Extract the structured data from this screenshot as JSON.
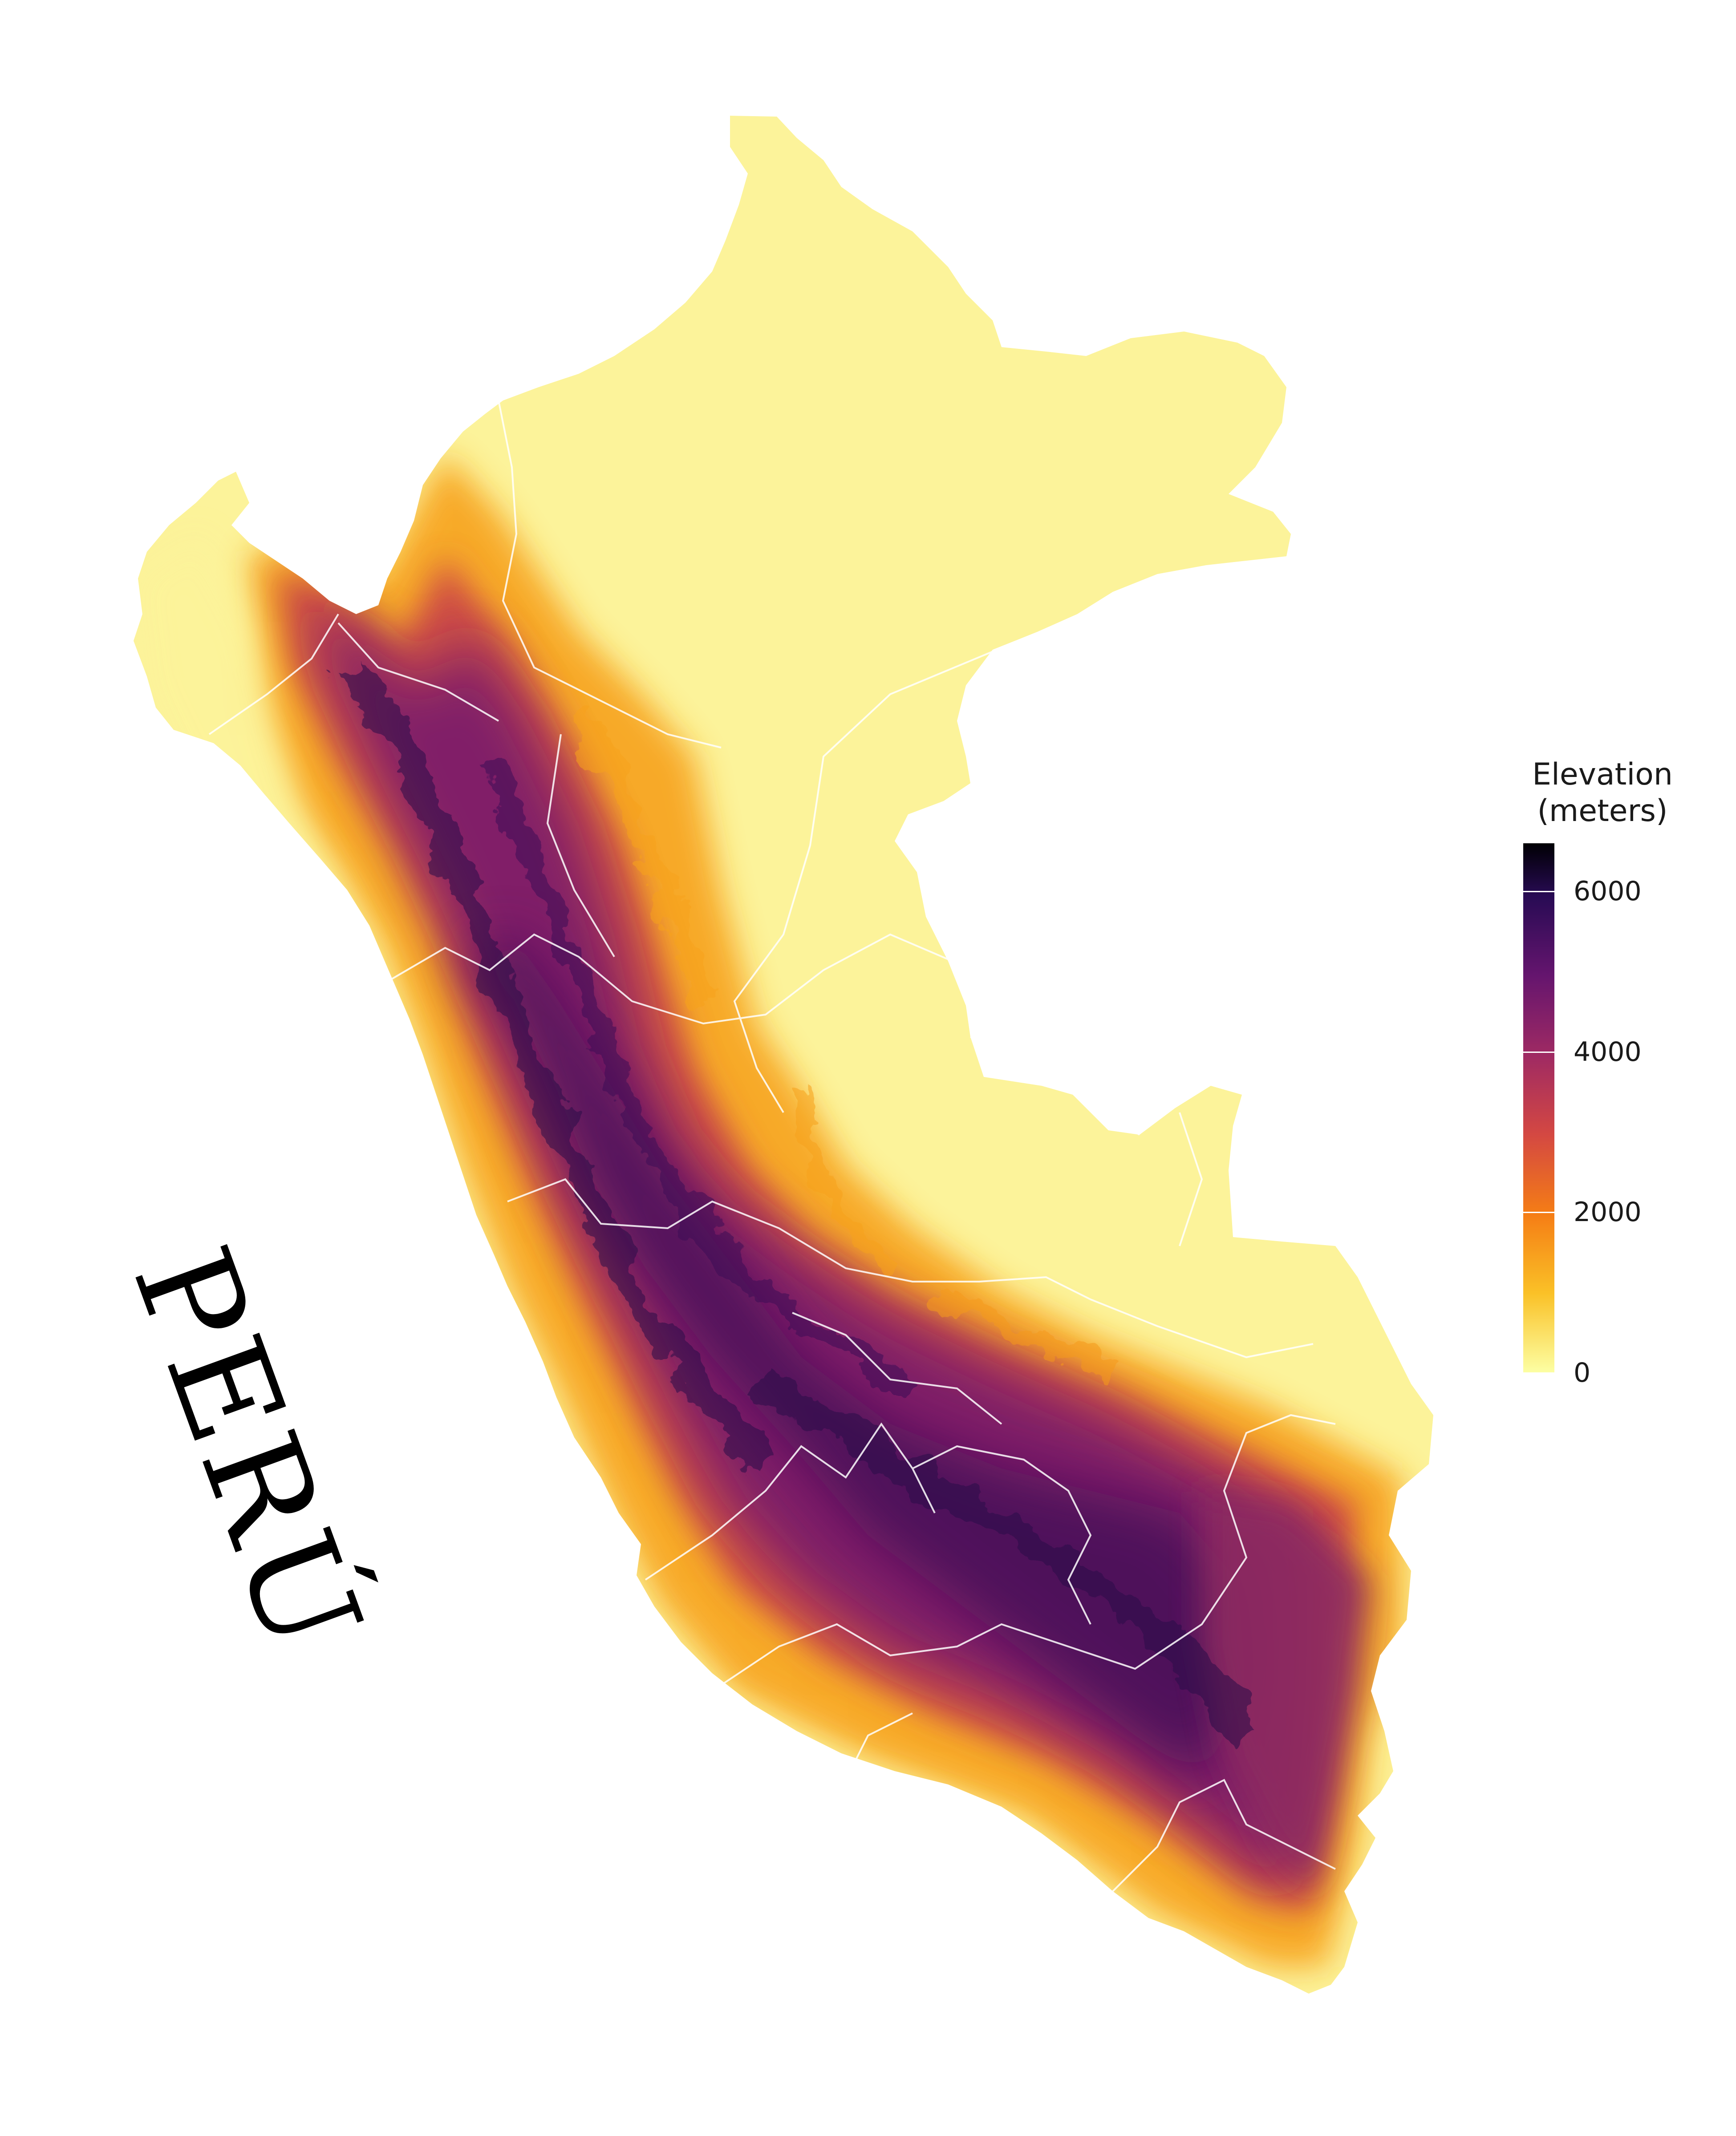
{
  "map": {
    "title": "PERÚ",
    "country": "Peru",
    "colors": {
      "lowland": "#fcf39a",
      "foothill": "#f7a21b",
      "midland": "#dd513a",
      "highland": "#8b2267",
      "peak": "#2b0a4a",
      "region_border": "#ffffff"
    }
  },
  "legend": {
    "title_line1": "Elevation",
    "title_line2": "(meters)",
    "scale": "inferno",
    "min": 0,
    "max": 6600,
    "ticks": [
      {
        "value": 0,
        "label": "0"
      },
      {
        "value": 2000,
        "label": "2000"
      },
      {
        "value": 4000,
        "label": "4000"
      },
      {
        "value": 6000,
        "label": "6000"
      }
    ]
  }
}
